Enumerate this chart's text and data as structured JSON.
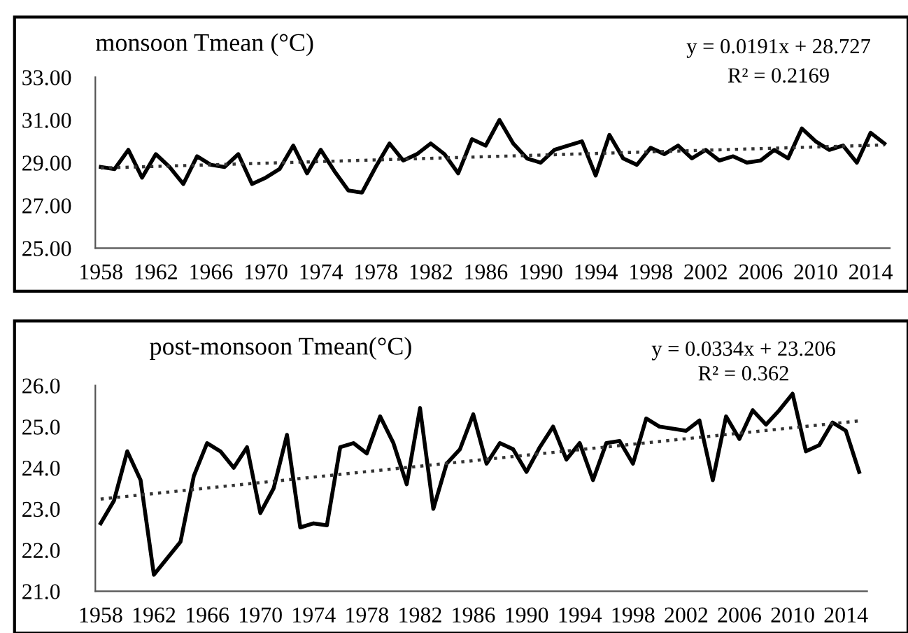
{
  "chart_data": [
    {
      "type": "line",
      "title": "monsoon Tmean (°C)",
      "annotations": [
        "y = 0.0191x + 28.727",
        "R² = 0.2169"
      ],
      "xlim": [
        1957.6,
        2015.4
      ],
      "xticks": [
        1958,
        1962,
        1966,
        1970,
        1974,
        1978,
        1982,
        1986,
        1990,
        1994,
        1998,
        2002,
        2006,
        2010,
        2014
      ],
      "ylim": [
        25,
        33
      ],
      "yticks": [
        {
          "value": 25,
          "label": "25.00"
        },
        {
          "value": 27,
          "label": "27.00"
        },
        {
          "value": 29,
          "label": "29.00"
        },
        {
          "value": 31,
          "label": "31.00"
        },
        {
          "value": 33,
          "label": "33.00"
        }
      ],
      "grid": false,
      "legend": false,
      "marker": "none",
      "series": [
        {
          "color": "#000000",
          "line_style": "solid",
          "x": [
            1958,
            1959,
            1960,
            1961,
            1962,
            1963,
            1964,
            1965,
            1966,
            1967,
            1968,
            1969,
            1970,
            1971,
            1972,
            1973,
            1974,
            1975,
            1976,
            1977,
            1978,
            1979,
            1980,
            1981,
            1982,
            1983,
            1984,
            1985,
            1986,
            1987,
            1988,
            1989,
            1990,
            1991,
            1992,
            1993,
            1994,
            1995,
            1996,
            1997,
            1998,
            1999,
            2000,
            2001,
            2002,
            2003,
            2004,
            2005,
            2006,
            2007,
            2008,
            2009,
            2010,
            2011,
            2012,
            2013,
            2014,
            2015
          ],
          "values": [
            28.8,
            28.7,
            29.6,
            28.3,
            29.4,
            28.8,
            28.0,
            29.3,
            28.9,
            28.8,
            29.4,
            28.0,
            28.3,
            28.7,
            29.8,
            28.5,
            29.6,
            28.6,
            27.7,
            27.6,
            28.8,
            29.9,
            29.1,
            29.4,
            29.9,
            29.4,
            28.5,
            30.1,
            29.8,
            31.0,
            29.9,
            29.2,
            29.0,
            29.6,
            29.8,
            30.0,
            28.4,
            30.3,
            29.2,
            28.9,
            29.7,
            29.4,
            29.8,
            29.2,
            29.6,
            29.1,
            29.3,
            29.0,
            29.1,
            29.6,
            29.2,
            30.6,
            30.0,
            29.6,
            29.8,
            29.0,
            30.4,
            29.9
          ]
        },
        {
          "color": "#333333",
          "line_style": "dotted",
          "x": [
            1958,
            2015
          ],
          "values": [
            28.75,
            29.83
          ]
        }
      ]
    },
    {
      "type": "line",
      "title": "post-monsoon Tmean(°C)",
      "annotations": [
        "y = 0.0334x + 23.206",
        "R² = 0.362"
      ],
      "xlim": [
        1957.6,
        2015.6
      ],
      "xticks": [
        1958,
        1962,
        1966,
        1970,
        1974,
        1978,
        1982,
        1986,
        1990,
        1994,
        1998,
        2002,
        2006,
        2010,
        2014
      ],
      "ylim": [
        21,
        26
      ],
      "yticks": [
        {
          "value": 21,
          "label": "21.0"
        },
        {
          "value": 22,
          "label": "22.0"
        },
        {
          "value": 23,
          "label": "23.0"
        },
        {
          "value": 24,
          "label": "24.0"
        },
        {
          "value": 25,
          "label": "25.0"
        },
        {
          "value": 26,
          "label": "26.0"
        }
      ],
      "grid": false,
      "legend": false,
      "marker": "none",
      "series": [
        {
          "color": "#000000",
          "line_style": "solid",
          "x": [
            1958,
            1959,
            1960,
            1961,
            1962,
            1963,
            1964,
            1965,
            1966,
            1967,
            1968,
            1969,
            1970,
            1971,
            1972,
            1973,
            1974,
            1975,
            1976,
            1977,
            1978,
            1979,
            1980,
            1981,
            1982,
            1983,
            1984,
            1985,
            1986,
            1987,
            1988,
            1989,
            1990,
            1991,
            1992,
            1993,
            1994,
            1995,
            1996,
            1997,
            1998,
            1999,
            2000,
            2001,
            2002,
            2003,
            2004,
            2005,
            2006,
            2007,
            2008,
            2009,
            2010,
            2011,
            2012,
            2013,
            2014,
            2015
          ],
          "values": [
            22.65,
            23.2,
            24.4,
            23.7,
            21.4,
            21.8,
            22.2,
            23.8,
            24.6,
            24.4,
            24.0,
            24.5,
            22.9,
            23.5,
            24.8,
            22.55,
            22.65,
            22.6,
            24.5,
            24.6,
            24.35,
            25.25,
            24.6,
            23.6,
            25.45,
            23.0,
            24.1,
            24.45,
            25.3,
            24.1,
            24.6,
            24.45,
            23.9,
            24.5,
            25.0,
            24.2,
            24.6,
            23.7,
            24.6,
            24.65,
            24.1,
            25.2,
            25.0,
            24.95,
            24.9,
            25.15,
            23.7,
            25.25,
            24.7,
            25.4,
            25.05,
            25.4,
            25.8,
            24.4,
            24.55,
            25.1,
            24.9,
            23.9
          ]
        },
        {
          "color": "#333333",
          "line_style": "dotted",
          "x": [
            1958,
            2015
          ],
          "values": [
            23.24,
            25.14
          ]
        }
      ]
    }
  ]
}
